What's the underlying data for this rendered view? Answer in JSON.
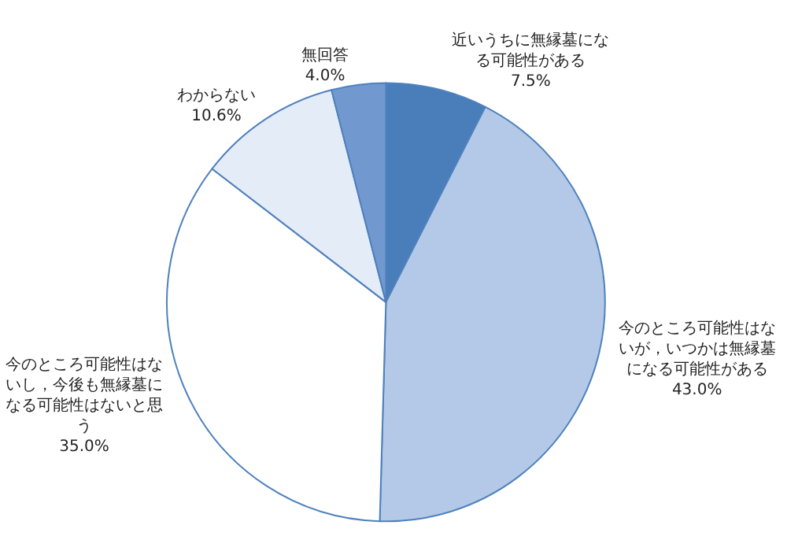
{
  "chart_data": {
    "type": "pie",
    "categories": [
      "近いうちに無縁墓になる可能性がある",
      "今のところ可能性はないが，いつかは無縁墓になる可能性がある",
      "今のところ可能性はないし，今後も無縁墓になる可能性はないと思う",
      "わからない",
      "無回答"
    ],
    "values": [
      7.5,
      43.0,
      35.0,
      10.6,
      4.0
    ],
    "value_labels": [
      "7.5%",
      "43.0%",
      "35.0%",
      "10.6%",
      "4.0%"
    ],
    "colors": [
      "#4a7ebb",
      "#b4c9e8",
      "#ffffff",
      "#e4ecf7",
      "#7199d0"
    ],
    "legend": false
  }
}
